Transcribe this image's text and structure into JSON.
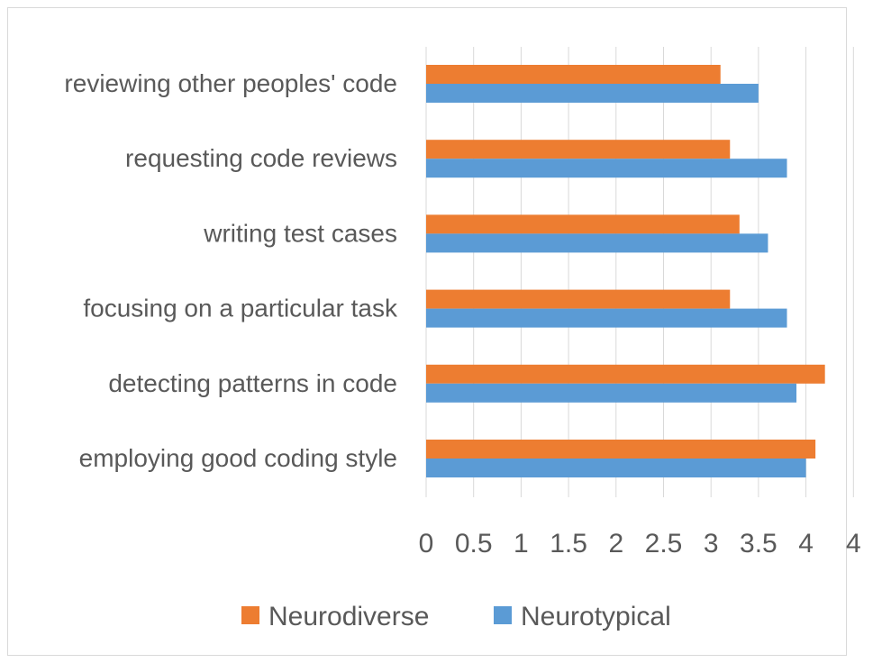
{
  "chart_data": {
    "type": "bar",
    "orientation": "horizontal",
    "categories": [
      "reviewing other peoples' code",
      "requesting code reviews",
      "writing test cases",
      "focusing on a particular task",
      "detecting patterns in code",
      "employing good coding style"
    ],
    "series": [
      {
        "name": "Neurodiverse",
        "color": "#ED7D31",
        "values": [
          3.1,
          3.2,
          3.3,
          3.2,
          4.2,
          4.1
        ]
      },
      {
        "name": "Neurotypical",
        "color": "#5B9BD5",
        "values": [
          3.5,
          3.8,
          3.6,
          3.8,
          3.9,
          4.0
        ]
      }
    ],
    "x_ticks": [
      "0",
      "0.5",
      "1",
      "1.5",
      "2",
      "2.5",
      "3",
      "3.5",
      "4",
      "4"
    ],
    "xlim": [
      0,
      4.5
    ],
    "grid": "vertical",
    "legend_position": "bottom",
    "title": "",
    "xlabel": "",
    "ylabel": ""
  }
}
